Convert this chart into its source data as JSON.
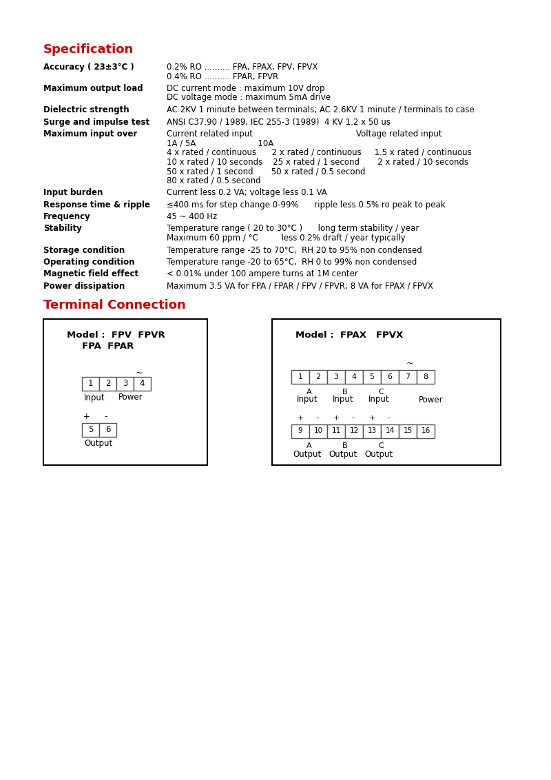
{
  "title": "Specification",
  "title2": "Terminal Connection",
  "title_color": "#cc0000",
  "bg_color": "#ffffff",
  "text_color": "#000000",
  "spec_rows": [
    {
      "label": "Accuracy ( 23±3°C )",
      "value": "0.2% RO .......... FPA, FPAX, FPV, FPVX\n0.4% RO .......... FPAR, FPVR"
    },
    {
      "label": "Maximum output load",
      "value": "DC current mode : maximum 10V drop\nDC voltage mode : maximum 5mA drive"
    },
    {
      "label": "Dielectric strength",
      "value": "AC 2KV 1 minute between terminals; AC 2.6KV 1 minute / terminals to case"
    },
    {
      "label": "Surge and impulse test",
      "value": "ANSI C37.90 / 1989, IEC 255-3 (1989)  4 KV 1.2 x 50 us"
    },
    {
      "label": "Maximum input over",
      "value": "Current related input                                        Voltage related input\n1A / 5A                        10A\n4 x rated / continuous      2 x rated / continuous     1.5 x rated / continuous\n10 x rated / 10 seconds    25 x rated / 1 second       2 x rated / 10 seconds\n50 x rated / 1 second       50 x rated / 0.5 second\n80 x rated / 0.5 second"
    },
    {
      "label": "Input burden",
      "value": "Current less 0.2 VA; voltage less 0.1 VA"
    },
    {
      "label": "Response time & ripple",
      "value": "≤400 ms for step change 0-99%      ripple less 0.5% ro peak to peak"
    },
    {
      "label": "Frequency",
      "value": "45 ~ 400 Hz"
    },
    {
      "label": "Stability",
      "value": "Temperature range ( 20 to 30°C )      long term stability / year\nMaximum 60 ppm / °C         less 0.2% draft / year typically"
    },
    {
      "label": "Storage condition",
      "value": "Temperature range -25 to 70°C,  RH 20 to 95% non condensed"
    },
    {
      "label": "Operating condition",
      "value": "Temperature range -20 to 65°C,  RH 0 to 99% non condensed"
    },
    {
      "label": "Magnetic field effect",
      "value": "< 0.01% under 100 ampere turns at 1M center"
    },
    {
      "label": "Power dissipation",
      "value": "Maximum 3.5 VA for FPA / FPAR / FPV / FPVR; 8 VA for FPAX / FPVX"
    }
  ]
}
